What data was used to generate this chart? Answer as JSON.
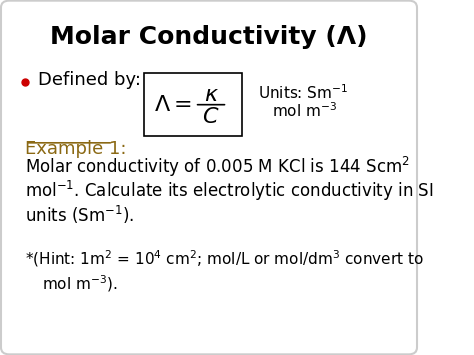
{
  "title": "Molar Conductivity (Λ)",
  "bg_color": "#ffffff",
  "border_color": "#cccccc",
  "title_color": "#000000",
  "title_fontsize": 18,
  "title_fontweight": "bold",
  "bullet_color": "#cc0000",
  "bullet_text": "Defined by:",
  "bullet_fontsize": 13,
  "example_color": "#8B6914",
  "example_text": "Example 1:",
  "example_fontsize": 13,
  "body_fontsize": 12,
  "body_color": "#000000",
  "units_fontsize": 11,
  "hint_fontsize": 11,
  "box_color": "#000000",
  "formula_fontsize": 16
}
